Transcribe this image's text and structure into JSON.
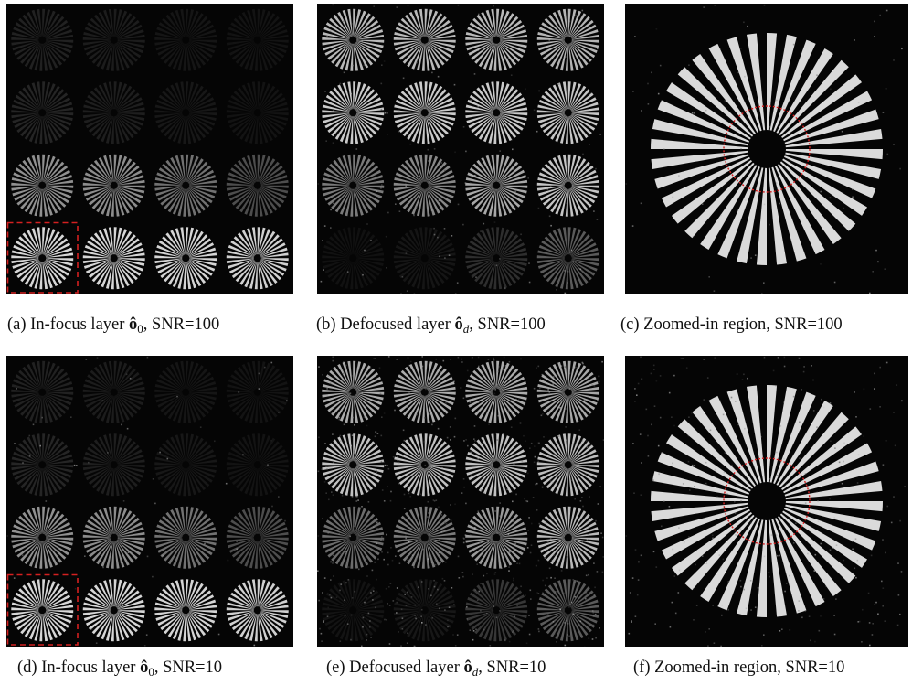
{
  "captions": {
    "a": {
      "prefix": "(a) In-focus layer ",
      "sym": "ô",
      "sub": "0",
      "suffix": ", SNR=100"
    },
    "b": {
      "prefix": "(b) Defocused layer ",
      "sym": "ô",
      "sub": "d",
      "suffix": ", SNR=100"
    },
    "c": {
      "text": "(c) Zoomed-in region, SNR=100"
    },
    "d": {
      "prefix": "(d) In-focus layer ",
      "sym": "ô",
      "sub": "0",
      "suffix": ", SNR=10"
    },
    "e": {
      "prefix": "(e) Defocused layer ",
      "sym": "ô",
      "sub": "d",
      "suffix": ", SNR=10"
    },
    "f": {
      "text": "(f) Zoomed-in region, SNR=10"
    }
  },
  "colors": {
    "background": "#050505",
    "star": "#e6e6e6",
    "highlight": "#d42020"
  },
  "grids": {
    "infocus": [
      [
        0.12,
        0.1,
        0.07,
        0.06
      ],
      [
        0.14,
        0.11,
        0.08,
        0.06
      ],
      [
        0.62,
        0.6,
        0.48,
        0.32
      ],
      [
        0.93,
        0.93,
        0.92,
        0.9
      ]
    ],
    "defocus_snr100": [
      [
        0.8,
        0.8,
        0.8,
        0.78
      ],
      [
        0.88,
        0.88,
        0.88,
        0.86
      ],
      [
        0.52,
        0.58,
        0.72,
        0.85
      ],
      [
        0.05,
        0.07,
        0.18,
        0.38
      ]
    ],
    "defocus_snr10": [
      [
        0.74,
        0.74,
        0.74,
        0.72
      ],
      [
        0.84,
        0.84,
        0.84,
        0.82
      ],
      [
        0.46,
        0.52,
        0.66,
        0.8
      ],
      [
        0.06,
        0.08,
        0.22,
        0.38
      ]
    ]
  },
  "spokes": 36
}
